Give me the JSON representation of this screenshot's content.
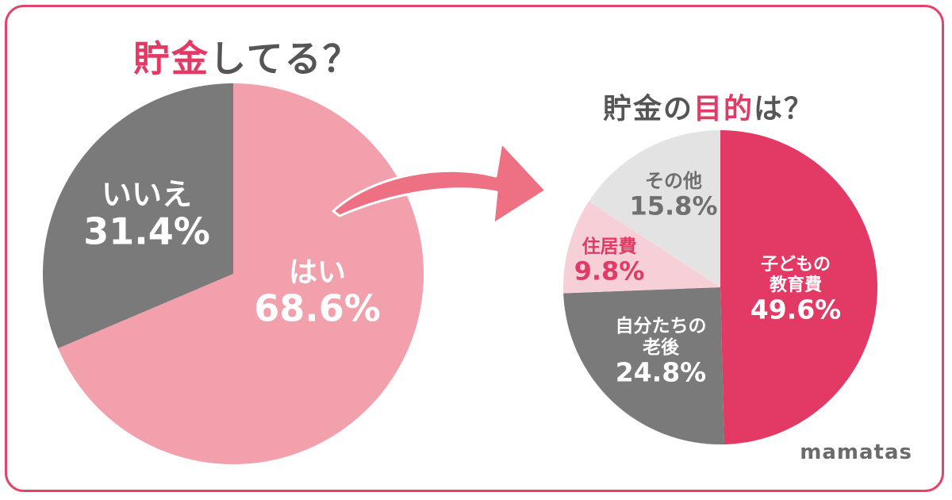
{
  "chart_data": [
    {
      "type": "pie",
      "title_parts": [
        "貯金",
        "してる？"
      ],
      "slices": [
        {
          "label": "はい",
          "value": 68.6,
          "value_text": "68.6%"
        },
        {
          "label": "いいえ",
          "value": 31.4,
          "value_text": "31.4%"
        }
      ],
      "colors": [
        "#f2a0ab",
        "#7a7a7a"
      ],
      "label_colors": [
        "#ffffff",
        "#ffffff"
      ]
    },
    {
      "type": "pie",
      "title_parts": [
        "貯金の",
        "目的",
        "は？"
      ],
      "slices": [
        {
          "label": "子どもの\n教育費",
          "value": 49.6,
          "value_text": "49.6%"
        },
        {
          "label": "自分たちの\n老後",
          "value": 24.8,
          "value_text": "24.8%"
        },
        {
          "label": "住居費",
          "value": 9.8,
          "value_text": "9.8%"
        },
        {
          "label": "その他",
          "value": 15.8,
          "value_text": "15.8%"
        }
      ],
      "colors": [
        "#e23a64",
        "#7a7a7a",
        "#f7d0d7",
        "#e3e3e3"
      ],
      "label_colors": [
        "#ffffff",
        "#ffffff",
        "#e23a64",
        "#6f6f6f"
      ]
    }
  ],
  "brand": "mamatas",
  "colors": {
    "accent": "#e23a64",
    "frame": "#e2446b",
    "arrow": "#ee7083",
    "title_gray": "#555555"
  }
}
